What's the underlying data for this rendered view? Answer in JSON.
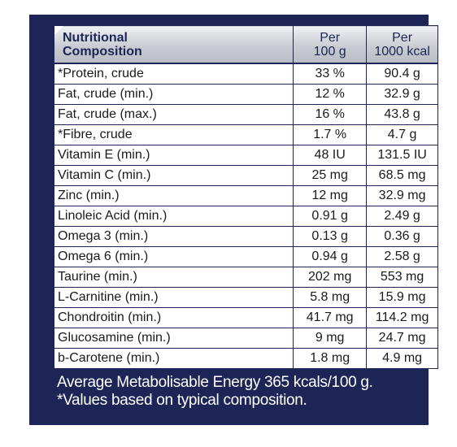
{
  "table": {
    "header": {
      "name": [
        "Nutritional",
        "Composition"
      ],
      "per100": [
        "Per",
        "100 g"
      ],
      "per1000": [
        "Per",
        "1000 kcal"
      ]
    },
    "rows": [
      {
        "name": "*Protein, crude",
        "per100": "33 %",
        "per1000": "90.4 g"
      },
      {
        "name": "Fat, crude (min.)",
        "per100": "12 %",
        "per1000": "32.9 g"
      },
      {
        "name": "Fat, crude (max.)",
        "per100": "16 %",
        "per1000": "43.8 g"
      },
      {
        "name": "*Fibre, crude",
        "per100": "1.7 %",
        "per1000": "4.7 g"
      },
      {
        "name": "Vitamin E (min.)",
        "per100": "48 IU",
        "per1000": "131.5 IU"
      },
      {
        "name": "Vitamin C (min.)",
        "per100": "25 mg",
        "per1000": "68.5 mg"
      },
      {
        "name": "Zinc (min.)",
        "per100": "12 mg",
        "per1000": "32.9 mg"
      },
      {
        "name": "Linoleic Acid (min.)",
        "per100": "0.91 g",
        "per1000": "2.49 g"
      },
      {
        "name": "Omega 3 (min.)",
        "per100": "0.13 g",
        "per1000": "0.36 g"
      },
      {
        "name": "Omega 6 (min.)",
        "per100": "0.94 g",
        "per1000": "2.58 g"
      },
      {
        "name": "Taurine (min.)",
        "per100": "202 mg",
        "per1000": "553 mg"
      },
      {
        "name": "L-Carnitine (min.)",
        "per100": "5.8 mg",
        "per1000": "15.9 mg"
      },
      {
        "name": "Chondroitin (min.)",
        "per100": "41.7 mg",
        "per1000": "114.2 mg"
      },
      {
        "name": "Glucosamine (min.)",
        "per100": "9 mg",
        "per1000": "24.7 mg"
      },
      {
        "name": "b-Carotene (min.)",
        "per100": "1.8 mg",
        "per1000": "4.9 mg"
      }
    ]
  },
  "footer": {
    "line1": "Average Metabolisable Energy 365 kcals/100 g.",
    "line2": "*Values based on typical composition."
  },
  "colors": {
    "panel": "#1c2556",
    "header_gradient_light": "#eef0f3",
    "header_gradient_dark": "#b9bcc3",
    "cell_background": "#ffffff",
    "footer_text": "#ffffff"
  }
}
